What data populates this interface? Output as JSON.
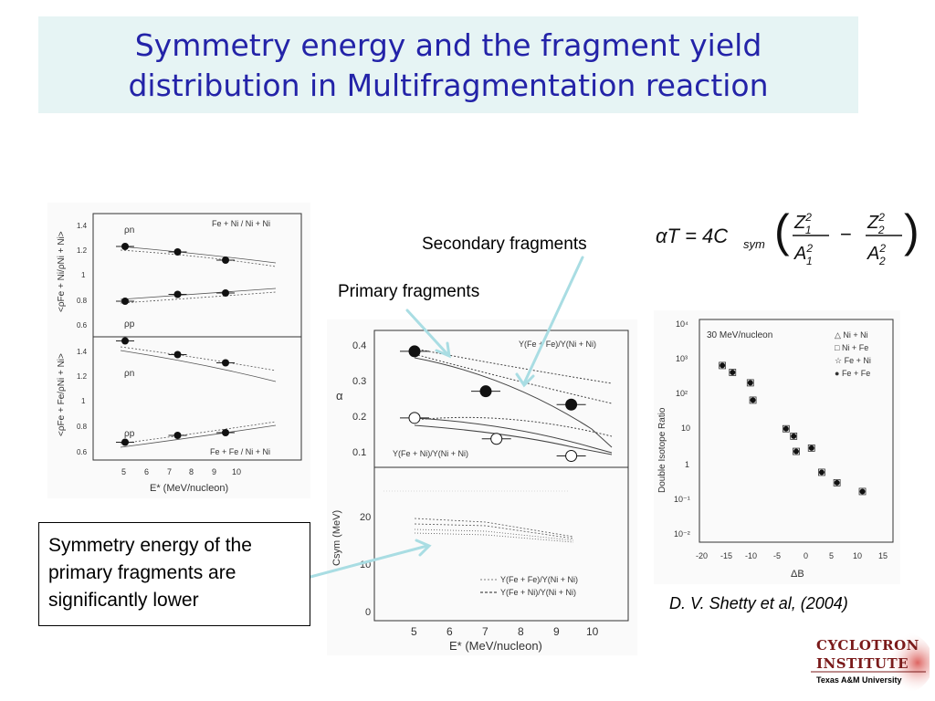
{
  "slide": {
    "title_line1": "Symmetry energy and the fragment yield",
    "title_line2": "distribution in Multifragmentation reaction"
  },
  "labels": {
    "secondary": "Secondary fragments",
    "primary": "Primary fragments"
  },
  "note": {
    "line1": "Symmetry energy of the",
    "line2": "primary fragments are",
    "line3": "significantly lower"
  },
  "citation": "D. V.  Shetty et al, (2004)",
  "logo": {
    "line1": "CYCLOTRON",
    "line2": "INSTITUTE",
    "line3": "Texas A&M University"
  },
  "formula": {
    "lhs": "αT = 4C",
    "sub": "sym"
  },
  "colors": {
    "title": "#2323a8",
    "arrow": "#a9dde3",
    "title_bg": "#e6f4f4"
  },
  "chart_data": [
    {
      "type": "scatter",
      "title": "",
      "xlabel": "E* (MeV/nucleon)",
      "x_ticks": [
        "5",
        "6",
        "7",
        "8",
        "9",
        "10"
      ],
      "panels": [
        {
          "ylabel": "<ρFe + Ni/ρNi + Ni>",
          "y_ticks": [
            "0.6",
            "0.8",
            "1",
            "1.2",
            "1.4"
          ],
          "legend": "Fe + Ni / Ni + Ni",
          "annotations": [
            "ρn",
            "ρp"
          ],
          "series": [
            {
              "name": "ρn",
              "x": [
                5.0,
                7.3,
                9.4
              ],
              "y": [
                1.21,
                1.17,
                1.11
              ]
            },
            {
              "name": "ρp",
              "x": [
                5.0,
                7.3,
                9.4
              ],
              "y": [
                0.81,
                0.86,
                0.87
              ]
            }
          ]
        },
        {
          "ylabel": "<ρFe + Fe/ρNi + Ni>",
          "y_ticks": [
            "0.6",
            "0.8",
            "1",
            "1.2",
            "1.4"
          ],
          "legend": "Fe + Fe / Ni + Ni",
          "annotations": [
            "ρn",
            "ρp"
          ],
          "series": [
            {
              "name": "ρn",
              "x": [
                5.0,
                7.3,
                9.4
              ],
              "y": [
                1.42,
                1.32,
                1.26
              ]
            },
            {
              "name": "ρp",
              "x": [
                5.0,
                7.3,
                9.4
              ],
              "y": [
                0.68,
                0.73,
                0.75
              ]
            }
          ]
        }
      ]
    },
    {
      "type": "line",
      "xlabel": "E* (MeV/nucleon)",
      "x_ticks": [
        "5",
        "6",
        "7",
        "8",
        "9",
        "10"
      ],
      "panels": [
        {
          "ylabel": "α",
          "y_ticks": [
            "0.1",
            "0.2",
            "0.3",
            "0.4"
          ],
          "ylim": [
            0.07,
            0.43
          ],
          "annotations": [
            "Y(Fe + Fe)/Y(Ni + Ni)",
            "Y(Fe + Ni)/Y(Ni + Ni)"
          ],
          "series": [
            {
              "name": "Y(Fe + Fe)/Y(Ni + Ni)",
              "x": [
                5.0,
                7.0,
                9.4
              ],
              "y": [
                0.375,
                0.27,
                0.235
              ]
            },
            {
              "name": "Y(Fe + Ni)/Y(Ni + Ni)",
              "x": [
                5.0,
                7.3,
                9.4
              ],
              "y": [
                0.2,
                0.145,
                0.1
              ]
            }
          ]
        },
        {
          "ylabel": "Csym (MeV)",
          "y_ticks": [
            "0",
            "10",
            "20"
          ],
          "ylim": [
            0,
            28
          ],
          "legend": [
            "Y(Fe + Fe)/Y(Ni + Ni)",
            "Y(Fe + Ni)/Y(Ni + Ni)"
          ],
          "series": [
            {
              "name": "Y(Fe + Fe)/Y(Ni + Ni)",
              "x": [
                5,
                7,
                9.5
              ],
              "y": [
                17.5,
                17,
                15.5
              ]
            },
            {
              "name": "Y(Fe + Ni)/Y(Ni + Ni)",
              "x": [
                5,
                7,
                9.5
              ],
              "y": [
                19.5,
                19,
                16
              ]
            }
          ]
        }
      ]
    },
    {
      "type": "scatter",
      "ylabel": "Double Isotope Ratio",
      "xlabel": "ΔB",
      "y_scale": "log",
      "x_ticks": [
        "-20",
        "-15",
        "-10",
        "-5",
        "0",
        "5",
        "10",
        "15"
      ],
      "y_ticks": [
        "10-2",
        "10-1",
        "1",
        "10",
        "102",
        "103",
        "104"
      ],
      "annotation": "30 MeV/nucleon",
      "legend": [
        "Ni + Ni",
        "Ni + Fe",
        "Fe + Ni",
        "Fe + Fe"
      ],
      "series": [
        {
          "name": "Fe + Fe",
          "x": [
            -17.5,
            -15.5,
            -12,
            -11.5,
            -5,
            -3.5,
            -3,
            0,
            2,
            5,
            10
          ],
          "y": [
            600,
            380,
            190,
            60,
            9,
            5.5,
            2,
            2.5,
            0.5,
            0.25,
            0.14
          ]
        }
      ]
    }
  ]
}
